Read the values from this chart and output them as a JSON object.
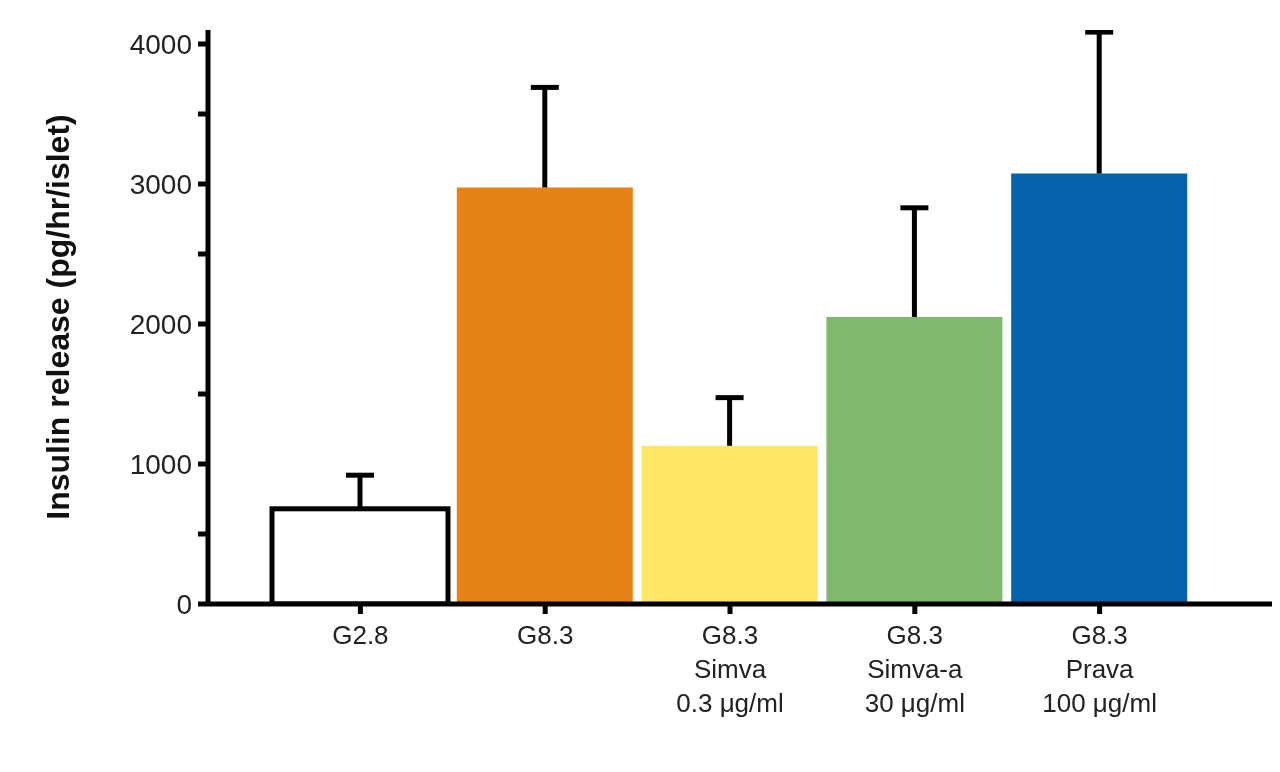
{
  "chart_data": {
    "type": "bar",
    "ylabel": "Insulin release (pg/hr/islet)",
    "categories": [
      "G2.8",
      "G8.3",
      "G8.3\nSimva\n0.3 μg/ml",
      "G8.3\nSimva-a\n30 μg/ml",
      "G8.3\nPrava\n100 μg/ml"
    ],
    "values": [
      680,
      2975,
      1130,
      2050,
      3075
    ],
    "colors": [
      "#ffffff",
      "#e68314",
      "#fce664",
      "#80b96e",
      "#0463ab"
    ],
    "errors": [
      [
        680,
        920
      ],
      [
        2975,
        3690
      ],
      [
        1130,
        1474
      ],
      [
        2050,
        2830
      ],
      [
        3075,
        4085
      ]
    ],
    "ylim": [
      0,
      4100
    ],
    "yticks": [
      0,
      {
        "value": 500,
        "label": null
      },
      1000,
      {
        "value": 1500,
        "label": null
      },
      2000,
      {
        "value": 2500,
        "label": null
      },
      3000,
      {
        "value": 3500,
        "label": null
      },
      4000
    ],
    "grid": false,
    "legend": false
  }
}
